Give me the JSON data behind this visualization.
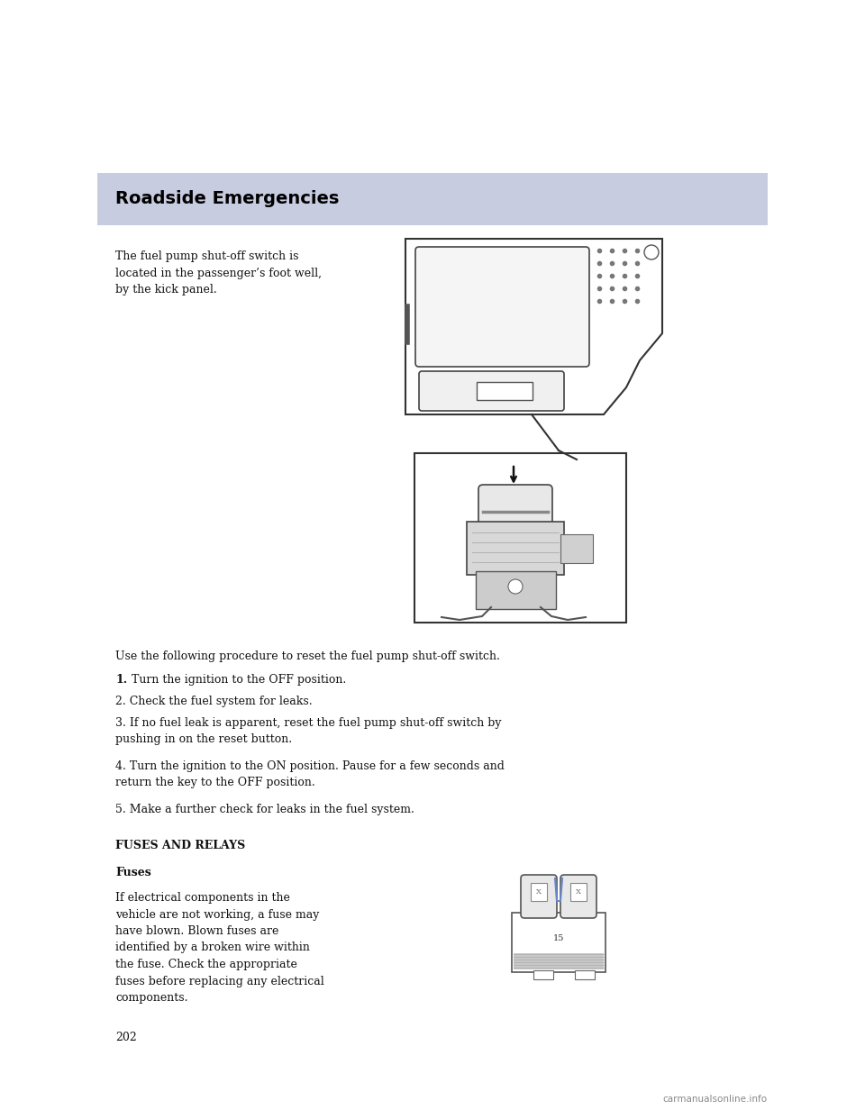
{
  "bg_color": "#ffffff",
  "header_bg_color": "#c8cce0",
  "header_text": "Roadside Emergencies",
  "header_text_color": "#000000",
  "header_fontsize": 14,
  "body_fontsize": 9.0,
  "bold_fontsize": 9.0,
  "page_number": "202",
  "text_color": "#111111",
  "para1": "The fuel pump shut-off switch is\nlocated in the passenger’s foot well,\nby the kick panel.",
  "para_procedure": "Use the following procedure to reset the fuel pump shut-off switch.",
  "step1_bold": "1.",
  "step1_rest": " Turn the ignition to the OFF position.",
  "step2": "2. Check the fuel system for leaks.",
  "step3": "3. If no fuel leak is apparent, reset the fuel pump shut-off switch by\npushing in on the reset button.",
  "step4": "4. Turn the ignition to the ON position. Pause for a few seconds and\nreturn the key to the OFF position.",
  "step5": "5. Make a further check for leaks in the fuel system.",
  "fuses_heading": "FUSES AND RELAYS",
  "fuses_subheading": "Fuses",
  "fuses_para": "If electrical components in the\nvehicle are not working, a fuse may\nhave blown. Blown fuses are\nidentified by a broken wire within\nthe fuse. Check the appropriate\nfuses before replacing any electrical\ncomponents.",
  "watermark": "carmanualsonline.info"
}
